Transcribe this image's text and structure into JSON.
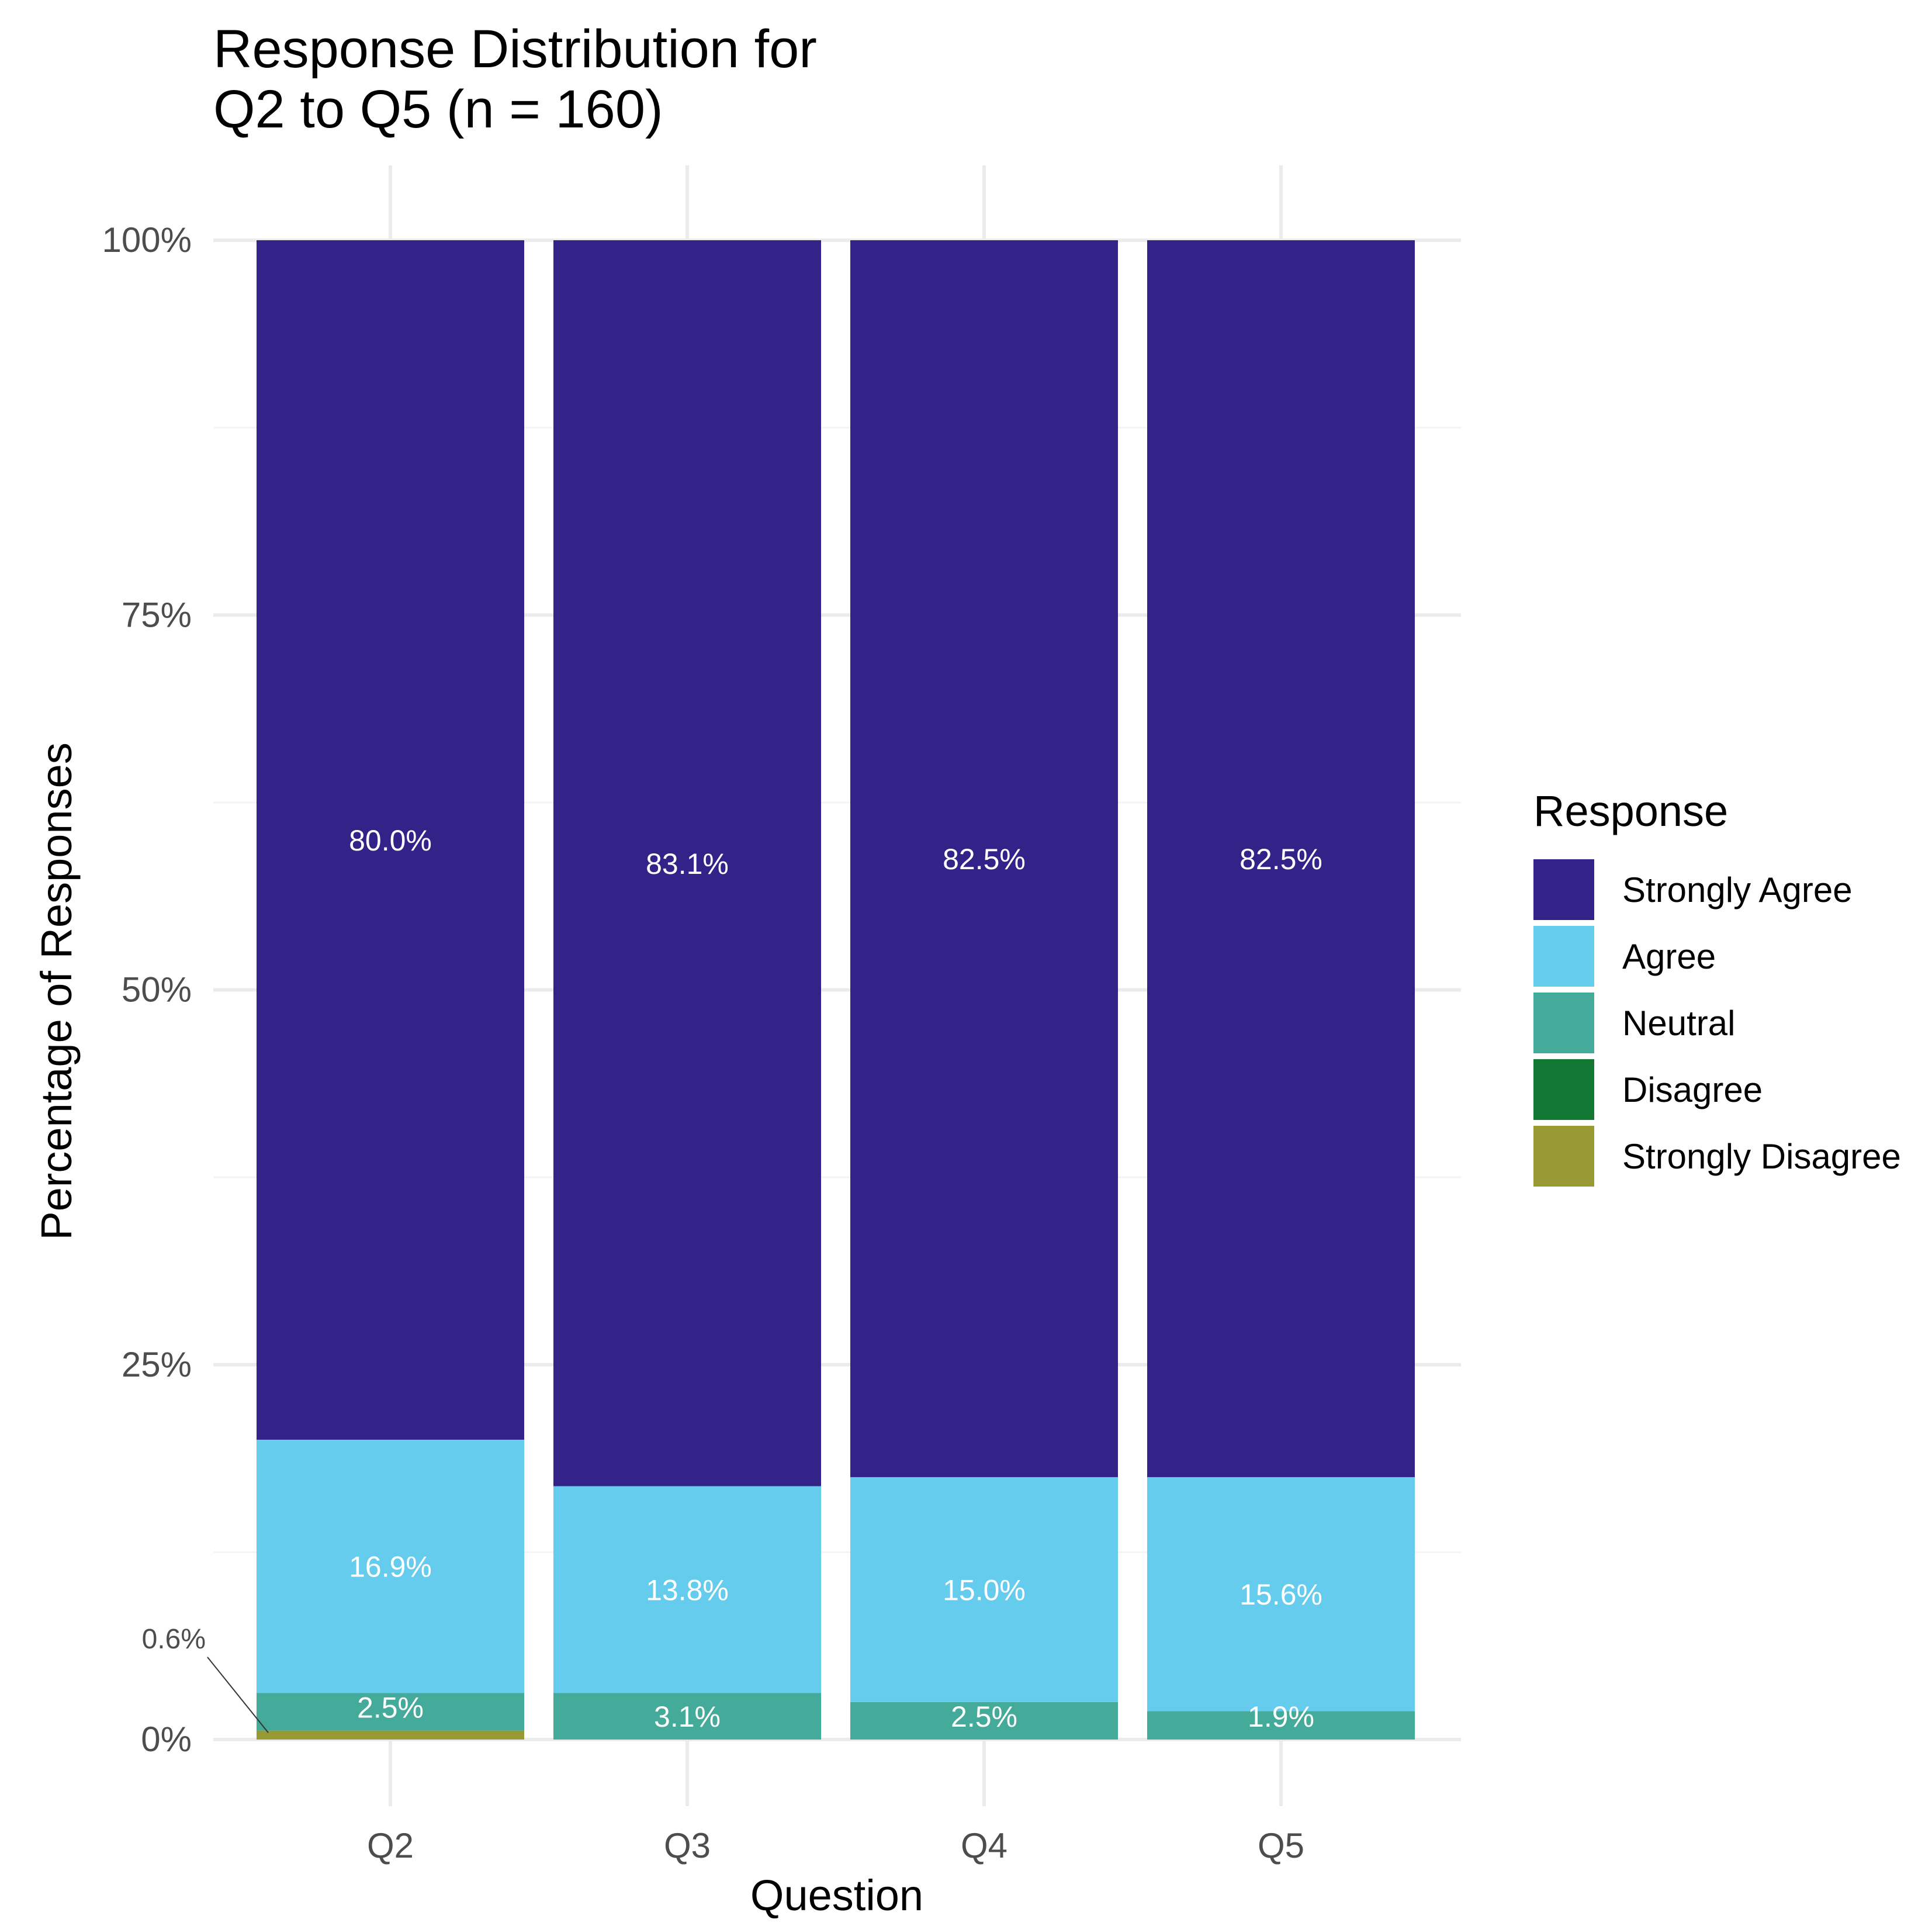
{
  "chart_data": {
    "type": "bar",
    "stacked": true,
    "title": "Response Distribution for\nQ2 to Q5 (n = 160)",
    "xlabel": "Question",
    "ylabel": "Percentage of Responses",
    "categories": [
      "Q2",
      "Q3",
      "Q4",
      "Q5"
    ],
    "ylim": [
      0,
      100
    ],
    "y_ticks": [
      0,
      25,
      50,
      75,
      100
    ],
    "y_tick_labels": [
      "0%",
      "25%",
      "50%",
      "75%",
      "100%"
    ],
    "grid": true,
    "legend": {
      "title": "Response",
      "position": "right"
    },
    "series": [
      {
        "name": "Strongly Disagree",
        "color": "#999933",
        "values": [
          0.6,
          0,
          0,
          0
        ],
        "labels": [
          "",
          "",
          "",
          ""
        ]
      },
      {
        "name": "Disagree",
        "color": "#117733",
        "values": [
          0,
          0,
          0,
          0
        ],
        "labels": [
          "",
          "",
          "",
          ""
        ]
      },
      {
        "name": "Neutral",
        "color": "#44AA99",
        "values": [
          2.5,
          3.1,
          2.5,
          1.9
        ],
        "labels": [
          "2.5%",
          "3.1%",
          "2.5%",
          "1.9%"
        ]
      },
      {
        "name": "Agree",
        "color": "#66CCEE",
        "values": [
          16.9,
          13.8,
          15.0,
          15.6
        ],
        "labels": [
          "16.9%",
          "13.8%",
          "15.0%",
          "15.6%"
        ]
      },
      {
        "name": "Strongly Agree",
        "color": "#332288",
        "values": [
          80.0,
          83.1,
          82.5,
          82.5
        ],
        "labels": [
          "80.0%",
          "83.1%",
          "82.5%",
          "82.5%"
        ]
      }
    ],
    "legend_order": [
      "Strongly Agree",
      "Agree",
      "Neutral",
      "Disagree",
      "Strongly Disagree"
    ],
    "annotations": [
      {
        "text": "0.6%",
        "category": "Q2",
        "series": "Strongly Disagree",
        "value": 0.6
      }
    ]
  }
}
